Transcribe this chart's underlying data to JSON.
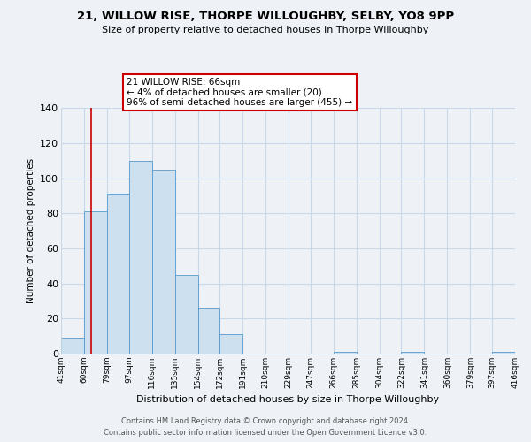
{
  "title_line1": "21, WILLOW RISE, THORPE WILLOUGHBY, SELBY, YO8 9PP",
  "title_line2": "Size of property relative to detached houses in Thorpe Willoughby",
  "xlabel": "Distribution of detached houses by size in Thorpe Willoughby",
  "ylabel": "Number of detached properties",
  "footer_line1": "Contains HM Land Registry data © Crown copyright and database right 2024.",
  "footer_line2": "Contains public sector information licensed under the Open Government Licence v3.0.",
  "bin_edges": [
    41,
    60,
    79,
    97,
    116,
    135,
    154,
    172,
    191,
    210,
    229,
    247,
    266,
    285,
    304,
    322,
    341,
    360,
    379,
    397,
    416
  ],
  "bin_labels": [
    "41sqm",
    "60sqm",
    "79sqm",
    "97sqm",
    "116sqm",
    "135sqm",
    "154sqm",
    "172sqm",
    "191sqm",
    "210sqm",
    "229sqm",
    "247sqm",
    "266sqm",
    "285sqm",
    "304sqm",
    "322sqm",
    "341sqm",
    "360sqm",
    "379sqm",
    "397sqm",
    "416sqm"
  ],
  "counts": [
    9,
    81,
    91,
    110,
    105,
    45,
    26,
    11,
    0,
    0,
    0,
    0,
    1,
    0,
    0,
    1,
    0,
    0,
    0,
    1
  ],
  "bar_color": "#cce0f0",
  "bar_edge_color": "#5599cc",
  "property_line_x": 66,
  "property_line_color": "#cc0000",
  "annotation_line1": "21 WILLOW RISE: 66sqm",
  "annotation_line2": "← 4% of detached houses are smaller (20)",
  "annotation_line3": "96% of semi-detached houses are larger (455) →",
  "annotation_box_color": "#ffffff",
  "annotation_box_edge_color": "#cc0000",
  "ylim": [
    0,
    140
  ],
  "yticks": [
    0,
    20,
    40,
    60,
    80,
    100,
    120,
    140
  ],
  "background_color": "#eef2f7",
  "grid_color": "#c8d8e8"
}
